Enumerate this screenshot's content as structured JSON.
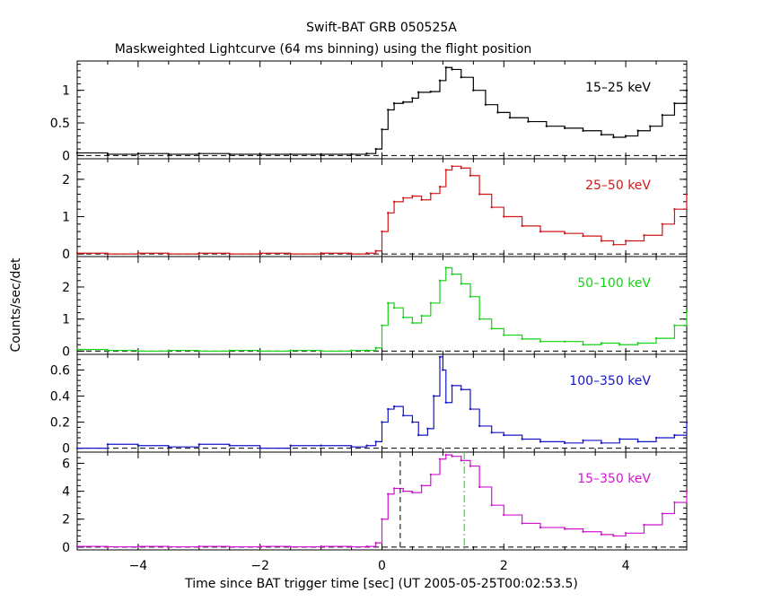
{
  "chart_data": {
    "type": "line",
    "title": "Swift-BAT GRB 050525A",
    "subtitle": "Maskweighted Lightcurve (64 ms binning) using the flight position",
    "xlabel": "Time since BAT trigger time [sec] (UT 2005-05-25T00:02:53.5)",
    "ylabel": "Counts/sec/det",
    "xlim": [
      -5,
      5
    ],
    "x_ticks": [
      -4,
      -2,
      0,
      2,
      4
    ],
    "x_tick_labels": [
      "−4",
      "−2",
      "0",
      "2",
      "4"
    ],
    "grid": false,
    "step_style": true,
    "baseline_dashed_y": 0,
    "panels": [
      {
        "band": "15–25 keV",
        "color": "#000000",
        "ylim": [
          -0.05,
          1.45
        ],
        "y_ticks": [
          0,
          0.5,
          1
        ],
        "y_tick_labels": [
          "0",
          "0.5",
          "1"
        ],
        "x": [
          -5,
          -4.5,
          -4,
          -3.5,
          -3,
          -2.5,
          -2,
          -1.5,
          -1,
          -0.5,
          -0.25,
          -0.1,
          0,
          0.1,
          0.2,
          0.35,
          0.5,
          0.6,
          0.8,
          0.95,
          1.05,
          1.15,
          1.3,
          1.5,
          1.7,
          1.9,
          2.1,
          2.4,
          2.7,
          3,
          3.3,
          3.6,
          3.8,
          4,
          4.2,
          4.4,
          4.6,
          4.8,
          5
        ],
        "values": [
          0.04,
          0.02,
          0.03,
          0.02,
          0.03,
          0.02,
          0.02,
          0.02,
          0.02,
          0.02,
          0.03,
          0.1,
          0.4,
          0.7,
          0.8,
          0.82,
          0.88,
          0.97,
          0.98,
          1.15,
          1.35,
          1.32,
          1.2,
          1.0,
          0.78,
          0.66,
          0.58,
          0.52,
          0.45,
          0.42,
          0.38,
          0.32,
          0.28,
          0.3,
          0.38,
          0.45,
          0.62,
          0.8,
          1.0
        ]
      },
      {
        "band": "25–50 keV",
        "color": "#d21414",
        "ylim": [
          -0.07,
          2.55
        ],
        "y_ticks": [
          0,
          1,
          2
        ],
        "y_tick_labels": [
          "0",
          "1",
          "2"
        ],
        "x": [
          -5,
          -4.5,
          -4,
          -3.5,
          -3,
          -2.5,
          -2,
          -1.5,
          -1,
          -0.5,
          -0.25,
          -0.1,
          0,
          0.1,
          0.2,
          0.35,
          0.5,
          0.65,
          0.8,
          0.95,
          1.05,
          1.15,
          1.3,
          1.45,
          1.6,
          1.8,
          2.0,
          2.3,
          2.6,
          3.0,
          3.3,
          3.6,
          3.8,
          4.0,
          4.3,
          4.6,
          4.8,
          5
        ],
        "values": [
          0.02,
          0.0,
          0.02,
          0.0,
          0.02,
          0.0,
          0.02,
          0.0,
          0.02,
          0.0,
          0.02,
          0.08,
          0.6,
          1.1,
          1.4,
          1.5,
          1.55,
          1.45,
          1.62,
          1.8,
          2.25,
          2.35,
          2.3,
          2.1,
          1.6,
          1.25,
          1.0,
          0.75,
          0.6,
          0.55,
          0.48,
          0.35,
          0.25,
          0.35,
          0.5,
          0.8,
          1.2,
          1.6
        ]
      },
      {
        "band": "50–100 keV",
        "color": "#14d214",
        "ylim": [
          -0.1,
          2.95
        ],
        "y_ticks": [
          0,
          1,
          2
        ],
        "y_tick_labels": [
          "0",
          "1",
          "2"
        ],
        "x": [
          -5,
          -4.5,
          -4,
          -3.5,
          -3,
          -2.5,
          -2,
          -1.5,
          -1,
          -0.5,
          -0.25,
          -0.1,
          0,
          0.1,
          0.2,
          0.35,
          0.5,
          0.65,
          0.8,
          0.95,
          1.05,
          1.15,
          1.3,
          1.45,
          1.6,
          1.8,
          2.0,
          2.3,
          2.6,
          3.0,
          3.3,
          3.6,
          3.9,
          4.2,
          4.5,
          4.8,
          5
        ],
        "values": [
          0.05,
          0.02,
          0.0,
          0.02,
          0.0,
          0.02,
          0.0,
          0.02,
          0.0,
          0.02,
          0.02,
          0.1,
          0.8,
          1.5,
          1.35,
          1.05,
          0.88,
          1.1,
          1.5,
          2.2,
          2.6,
          2.4,
          2.1,
          1.7,
          1.0,
          0.7,
          0.5,
          0.38,
          0.3,
          0.3,
          0.2,
          0.25,
          0.2,
          0.25,
          0.4,
          0.8,
          1.25
        ]
      },
      {
        "band": "100–350 keV",
        "color": "#1414c8",
        "ylim": [
          -0.03,
          0.72
        ],
        "y_ticks": [
          0,
          0.2,
          0.4,
          0.6
        ],
        "y_tick_labels": [
          "0",
          "0.2",
          "0.4",
          "0.6"
        ],
        "x": [
          -5,
          -4.5,
          -4,
          -3.5,
          -3,
          -2.5,
          -2,
          -1.5,
          -1,
          -0.5,
          -0.25,
          -0.1,
          0,
          0.1,
          0.2,
          0.35,
          0.5,
          0.6,
          0.75,
          0.85,
          0.95,
          1.0,
          1.05,
          1.15,
          1.3,
          1.45,
          1.6,
          1.8,
          2.0,
          2.3,
          2.6,
          3.0,
          3.3,
          3.6,
          3.9,
          4.2,
          4.5,
          4.8,
          5
        ],
        "values": [
          0.0,
          0.03,
          0.02,
          0.01,
          0.03,
          0.02,
          0.0,
          0.02,
          0.02,
          0.01,
          0.02,
          0.05,
          0.2,
          0.3,
          0.32,
          0.25,
          0.2,
          0.1,
          0.15,
          0.4,
          0.7,
          0.6,
          0.35,
          0.48,
          0.45,
          0.3,
          0.17,
          0.12,
          0.1,
          0.07,
          0.05,
          0.04,
          0.06,
          0.04,
          0.07,
          0.05,
          0.08,
          0.1,
          0.2
        ]
      },
      {
        "band": "15–350 keV",
        "color": "#d214d2",
        "ylim": [
          -0.2,
          6.8
        ],
        "y_ticks": [
          0,
          2,
          4,
          6
        ],
        "y_tick_labels": [
          "0",
          "2",
          "4",
          "6"
        ],
        "x": [
          -5,
          -4.5,
          -4,
          -3.5,
          -3,
          -2.5,
          -2,
          -1.5,
          -1,
          -0.5,
          -0.25,
          -0.1,
          0,
          0.1,
          0.2,
          0.35,
          0.5,
          0.65,
          0.8,
          0.95,
          1.05,
          1.15,
          1.3,
          1.45,
          1.6,
          1.8,
          2.0,
          2.3,
          2.6,
          3.0,
          3.3,
          3.6,
          3.8,
          4.0,
          4.3,
          4.6,
          4.8,
          5
        ],
        "values": [
          0.05,
          0.02,
          0.05,
          0.02,
          0.05,
          0.02,
          0.05,
          0.02,
          0.05,
          0.02,
          0.05,
          0.3,
          2.0,
          3.8,
          4.2,
          4.0,
          3.9,
          4.4,
          5.2,
          6.3,
          6.6,
          6.5,
          6.2,
          5.8,
          4.3,
          3.0,
          2.3,
          1.7,
          1.4,
          1.3,
          1.1,
          0.9,
          0.8,
          1.0,
          1.6,
          2.4,
          3.2,
          4.0
        ]
      }
    ],
    "markers": [
      {
        "panel": 4,
        "x": 0.3,
        "color": "#000000",
        "style": "dashed"
      },
      {
        "panel": 4,
        "x": 1.35,
        "color": "#14d214",
        "style": "dashdot"
      }
    ]
  }
}
